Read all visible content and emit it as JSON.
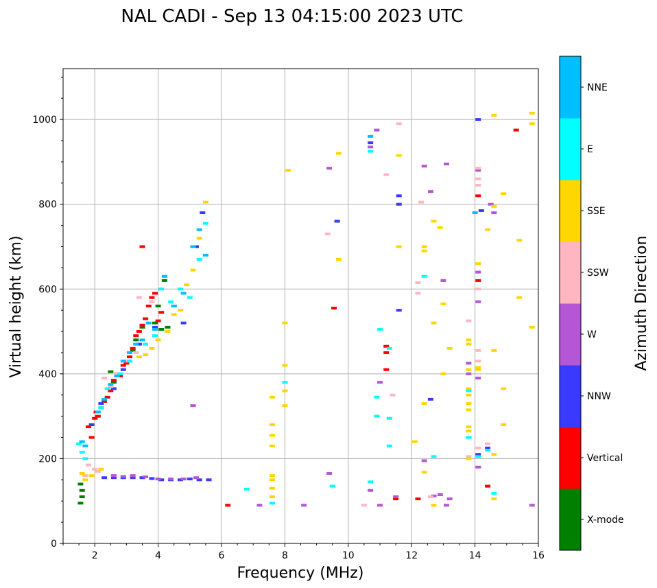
{
  "chart_data": {
    "type": "scatter",
    "title": "NAL CADI - Sep 13 04:15:00 2023 UTC",
    "xlabel": "Frequency (MHz)",
    "ylabel": "Virtual height (km)",
    "xlim": [
      1,
      16
    ],
    "ylim": [
      0,
      1120
    ],
    "xticks": [
      2,
      4,
      6,
      8,
      10,
      12,
      14,
      16
    ],
    "yticks": [
      0,
      200,
      400,
      600,
      800,
      1000
    ],
    "grid": true,
    "colorbar": {
      "label": "Azimuth Direction",
      "categories": [
        {
          "name": "X-mode",
          "color": "#008000"
        },
        {
          "name": "Vertical",
          "color": "#ff0000"
        },
        {
          "name": "NNW",
          "color": "#3a3aff"
        },
        {
          "name": "W",
          "color": "#b456d6"
        },
        {
          "name": "SSW",
          "color": "#ffb6c1"
        },
        {
          "name": "SSE",
          "color": "#ffd700"
        },
        {
          "name": "E",
          "color": "#00ffff"
        },
        {
          "name": "NNE",
          "color": "#00bfff"
        }
      ]
    },
    "series": [
      {
        "name": "X-mode",
        "points": [
          [
            1.55,
            95
          ],
          [
            1.6,
            110
          ],
          [
            1.55,
            140
          ],
          [
            1.6,
            125
          ],
          [
            2.5,
            405
          ],
          [
            2.6,
            380
          ],
          [
            2.7,
            395
          ],
          [
            3.2,
            455
          ],
          [
            3.3,
            480
          ],
          [
            3.5,
            510
          ],
          [
            3.9,
            520
          ],
          [
            4.0,
            560
          ],
          [
            4.2,
            620
          ],
          [
            4.3,
            510
          ],
          [
            4.1,
            505
          ],
          [
            4.5,
            560
          ],
          [
            9.65,
            760
          ]
        ]
      },
      {
        "name": "Vertical",
        "points": [
          [
            1.8,
            275
          ],
          [
            1.9,
            250
          ],
          [
            2.0,
            295
          ],
          [
            2.05,
            310
          ],
          [
            2.1,
            300
          ],
          [
            2.2,
            320
          ],
          [
            2.3,
            335
          ],
          [
            2.4,
            345
          ],
          [
            2.5,
            360
          ],
          [
            2.6,
            385
          ],
          [
            2.7,
            400
          ],
          [
            2.8,
            395
          ],
          [
            2.9,
            420
          ],
          [
            3.0,
            425
          ],
          [
            3.1,
            440
          ],
          [
            3.2,
            460
          ],
          [
            3.3,
            490
          ],
          [
            3.4,
            500
          ],
          [
            3.5,
            515
          ],
          [
            3.6,
            530
          ],
          [
            3.7,
            560
          ],
          [
            3.8,
            580
          ],
          [
            3.9,
            590
          ],
          [
            4.0,
            525
          ],
          [
            4.1,
            545
          ],
          [
            3.5,
            700
          ],
          [
            6.2,
            90
          ],
          [
            9.55,
            555
          ],
          [
            11.2,
            465
          ],
          [
            11.2,
            450
          ],
          [
            11.2,
            410
          ],
          [
            11.5,
            105
          ],
          [
            12.2,
            105
          ],
          [
            14.4,
            135
          ],
          [
            14.1,
            820
          ],
          [
            14.1,
            620
          ],
          [
            15.3,
            975
          ]
        ]
      },
      {
        "name": "NNW",
        "points": [
          [
            2.3,
            155
          ],
          [
            2.6,
            155
          ],
          [
            2.9,
            155
          ],
          [
            3.2,
            155
          ],
          [
            3.5,
            155
          ],
          [
            3.8,
            153
          ],
          [
            4.1,
            150
          ],
          [
            4.4,
            150
          ],
          [
            4.7,
            150
          ],
          [
            5.0,
            152
          ],
          [
            5.3,
            150
          ],
          [
            5.6,
            150
          ],
          [
            1.9,
            280
          ],
          [
            2.2,
            330
          ],
          [
            2.6,
            365
          ],
          [
            2.9,
            410
          ],
          [
            3.1,
            430
          ],
          [
            3.4,
            470
          ],
          [
            3.9,
            510
          ],
          [
            4.8,
            520
          ],
          [
            5.2,
            700
          ],
          [
            5.4,
            780
          ],
          [
            9.65,
            760
          ],
          [
            10.7,
            945
          ],
          [
            11.6,
            820
          ],
          [
            11.6,
            800
          ],
          [
            11.6,
            550
          ],
          [
            12.6,
            340
          ],
          [
            13.8,
            250
          ],
          [
            14.1,
            1000
          ],
          [
            14.1,
            210
          ],
          [
            14.4,
            225
          ],
          [
            14.2,
            785
          ]
        ]
      },
      {
        "name": "W",
        "points": [
          [
            2.6,
            160
          ],
          [
            2.9,
            158
          ],
          [
            3.2,
            160
          ],
          [
            3.6,
            157
          ],
          [
            4.0,
            152
          ],
          [
            4.4,
            152
          ],
          [
            4.8,
            152
          ],
          [
            5.2,
            155
          ],
          [
            10.7,
            935
          ],
          [
            10.9,
            975
          ],
          [
            11.0,
            380
          ],
          [
            11.0,
            90
          ],
          [
            10.7,
            125
          ],
          [
            11.5,
            110
          ],
          [
            12.4,
            890
          ],
          [
            12.6,
            830
          ],
          [
            12.4,
            195
          ],
          [
            12.7,
            112
          ],
          [
            12.9,
            115
          ],
          [
            13.1,
            895
          ],
          [
            13.2,
            105
          ],
          [
            13.0,
            620
          ],
          [
            13.1,
            90
          ],
          [
            13.8,
            425
          ],
          [
            13.8,
            400
          ],
          [
            14.1,
            880
          ],
          [
            14.1,
            640
          ],
          [
            14.1,
            570
          ],
          [
            14.1,
            390
          ],
          [
            14.1,
            180
          ],
          [
            14.5,
            800
          ],
          [
            14.6,
            780
          ],
          [
            15.8,
            90
          ],
          [
            8.6,
            90
          ],
          [
            9.4,
            885
          ],
          [
            9.4,
            165
          ],
          [
            7.2,
            90
          ],
          [
            5.1,
            325
          ]
        ]
      },
      {
        "name": "SSW",
        "points": [
          [
            1.7,
            160
          ],
          [
            1.8,
            185
          ],
          [
            2.0,
            175
          ],
          [
            2.1,
            170
          ],
          [
            2.3,
            390
          ],
          [
            2.5,
            370
          ],
          [
            2.7,
            400
          ],
          [
            3.0,
            430
          ],
          [
            3.3,
            450
          ],
          [
            3.4,
            580
          ],
          [
            3.8,
            570
          ],
          [
            9.35,
            730
          ],
          [
            10.5,
            90
          ],
          [
            11.2,
            870
          ],
          [
            11.6,
            990
          ],
          [
            11.4,
            350
          ],
          [
            12.2,
            590
          ],
          [
            12.2,
            615
          ],
          [
            12.3,
            805
          ],
          [
            12.6,
            110
          ],
          [
            13.8,
            525
          ],
          [
            13.8,
            205
          ],
          [
            14.1,
            885
          ],
          [
            14.1,
            860
          ],
          [
            14.1,
            845
          ],
          [
            14.1,
            600
          ],
          [
            14.1,
            455
          ],
          [
            14.1,
            430
          ],
          [
            14.1,
            225
          ],
          [
            14.4,
            235
          ],
          [
            14.6,
            1010
          ]
        ]
      },
      {
        "name": "SSE",
        "points": [
          [
            1.6,
            165
          ],
          [
            1.7,
            150
          ],
          [
            1.9,
            160
          ],
          [
            2.2,
            175
          ],
          [
            3.4,
            440
          ],
          [
            3.6,
            445
          ],
          [
            3.8,
            460
          ],
          [
            4.0,
            480
          ],
          [
            4.3,
            500
          ],
          [
            4.5,
            540
          ],
          [
            4.7,
            550
          ],
          [
            4.9,
            610
          ],
          [
            5.1,
            645
          ],
          [
            5.3,
            720
          ],
          [
            5.5,
            805
          ],
          [
            7.6,
            345
          ],
          [
            7.6,
            280
          ],
          [
            7.6,
            255
          ],
          [
            7.6,
            230
          ],
          [
            7.6,
            160
          ],
          [
            7.6,
            150
          ],
          [
            7.6,
            130
          ],
          [
            7.6,
            110
          ],
          [
            8.0,
            420
          ],
          [
            8.0,
            360
          ],
          [
            8.0,
            325
          ],
          [
            8.0,
            520
          ],
          [
            8.1,
            880
          ],
          [
            9.7,
            920
          ],
          [
            9.7,
            670
          ],
          [
            11.6,
            700
          ],
          [
            11.6,
            915
          ],
          [
            12.1,
            240
          ],
          [
            12.4,
            700
          ],
          [
            12.4,
            690
          ],
          [
            12.4,
            330
          ],
          [
            12.4,
            168
          ],
          [
            12.7,
            760
          ],
          [
            12.7,
            520
          ],
          [
            12.7,
            90
          ],
          [
            12.9,
            745
          ],
          [
            13.0,
            565
          ],
          [
            13.0,
            400
          ],
          [
            13.2,
            460
          ],
          [
            13.8,
            480
          ],
          [
            13.8,
            470
          ],
          [
            13.8,
            410
          ],
          [
            13.8,
            365
          ],
          [
            13.8,
            350
          ],
          [
            13.8,
            330
          ],
          [
            13.8,
            315
          ],
          [
            13.8,
            275
          ],
          [
            13.8,
            265
          ],
          [
            13.8,
            200
          ],
          [
            14.1,
            660
          ],
          [
            14.1,
            410
          ],
          [
            14.1,
            415
          ],
          [
            14.4,
            740
          ],
          [
            14.6,
            795
          ],
          [
            14.6,
            455
          ],
          [
            14.6,
            210
          ],
          [
            14.6,
            105
          ],
          [
            14.6,
            1010
          ],
          [
            14.9,
            825
          ],
          [
            14.9,
            365
          ],
          [
            14.9,
            280
          ],
          [
            15.4,
            715
          ],
          [
            15.4,
            580
          ],
          [
            15.8,
            1015
          ],
          [
            15.8,
            990
          ],
          [
            15.8,
            510
          ]
        ]
      },
      {
        "name": "E",
        "points": [
          [
            1.5,
            235
          ],
          [
            1.6,
            215
          ],
          [
            1.7,
            200
          ],
          [
            2.2,
            320
          ],
          [
            2.4,
            365
          ],
          [
            2.8,
            400
          ],
          [
            3.1,
            430
          ],
          [
            3.6,
            470
          ],
          [
            3.9,
            490
          ],
          [
            4.1,
            600
          ],
          [
            4.4,
            570
          ],
          [
            4.7,
            600
          ],
          [
            5.0,
            580
          ],
          [
            5.3,
            670
          ],
          [
            5.5,
            755
          ],
          [
            6.8,
            128
          ],
          [
            7.6,
            95
          ],
          [
            8.0,
            380
          ],
          [
            9.5,
            135
          ],
          [
            10.7,
            145
          ],
          [
            10.9,
            345
          ],
          [
            10.9,
            300
          ],
          [
            11.3,
            295
          ],
          [
            11.3,
            230
          ],
          [
            11.3,
            460
          ],
          [
            11.0,
            505
          ],
          [
            12.4,
            630
          ],
          [
            12.7,
            205
          ],
          [
            13.8,
            360
          ],
          [
            13.8,
            250
          ],
          [
            14.4,
            220
          ],
          [
            14.6,
            118
          ],
          [
            10.7,
            925
          ],
          [
            14.1,
            205
          ]
        ]
      },
      {
        "name": "NNE",
        "points": [
          [
            1.6,
            240
          ],
          [
            1.7,
            230
          ],
          [
            2.1,
            310
          ],
          [
            2.3,
            340
          ],
          [
            2.5,
            375
          ],
          [
            2.7,
            395
          ],
          [
            2.9,
            430
          ],
          [
            3.1,
            450
          ],
          [
            3.3,
            470
          ],
          [
            3.5,
            480
          ],
          [
            3.7,
            520
          ],
          [
            3.9,
            505
          ],
          [
            4.2,
            630
          ],
          [
            4.5,
            560
          ],
          [
            4.8,
            590
          ],
          [
            5.1,
            700
          ],
          [
            5.3,
            740
          ],
          [
            5.5,
            680
          ],
          [
            10.7,
            960
          ],
          [
            14.0,
            780
          ]
        ]
      }
    ]
  }
}
